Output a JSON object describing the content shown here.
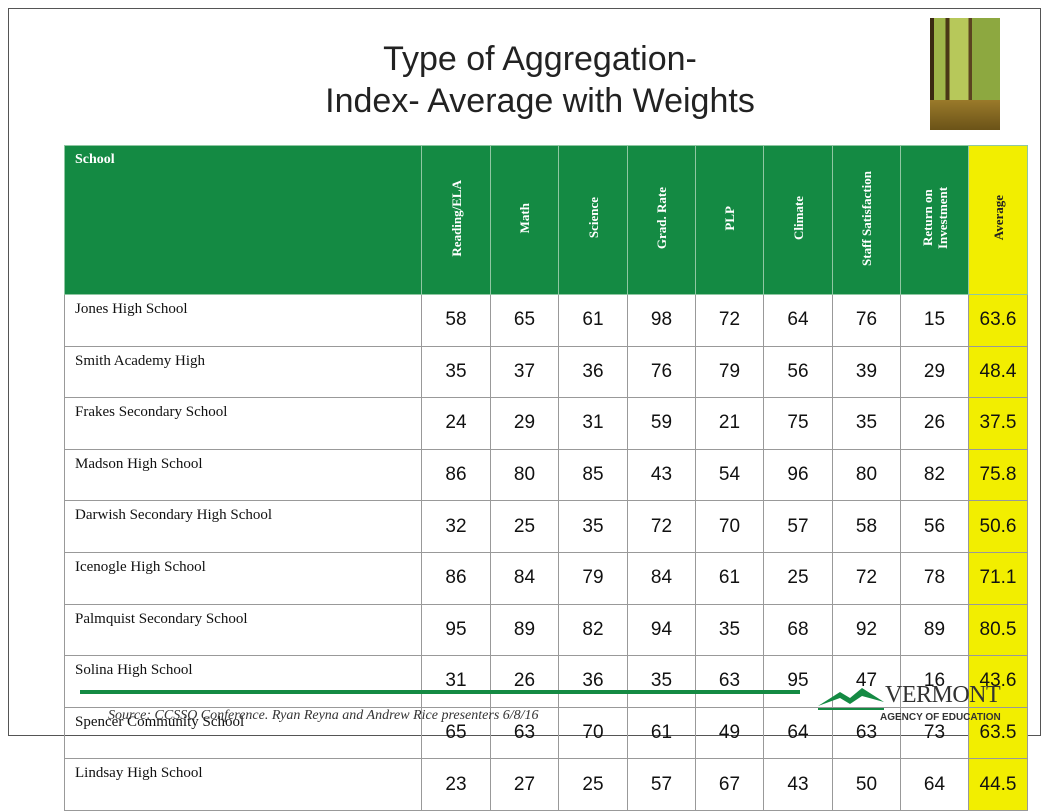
{
  "title": [
    "Type of Aggregation-",
    "Index- Average with Weights"
  ],
  "table": {
    "header": [
      "School",
      "Reading/ELA",
      "Math",
      "Science",
      "Grad. Rate",
      "PLP",
      "Climate",
      "Staff Satisfaction",
      "Return on Investment",
      "Average"
    ],
    "rows": [
      [
        "Jones High School",
        58,
        65,
        61,
        98,
        72,
        64,
        76,
        15,
        63.6
      ],
      [
        "Smith Academy High",
        35,
        37,
        36,
        76,
        79,
        56,
        39,
        29,
        48.4
      ],
      [
        "Frakes Secondary School",
        24,
        29,
        31,
        59,
        21,
        75,
        35,
        26,
        37.5
      ],
      [
        "Madson High School",
        86,
        80,
        85,
        43,
        54,
        96,
        80,
        82,
        75.8
      ],
      [
        "Darwish Secondary High School",
        32,
        25,
        35,
        72,
        70,
        57,
        58,
        56,
        50.6
      ],
      [
        "Icenogle High School",
        86,
        84,
        79,
        84,
        61,
        25,
        72,
        78,
        71.1
      ],
      [
        "Palmquist Secondary School",
        95,
        89,
        82,
        94,
        35,
        68,
        92,
        89,
        80.5
      ],
      [
        "Solina High School",
        31,
        26,
        36,
        35,
        63,
        95,
        47,
        16,
        43.6
      ],
      [
        "Spencer Community School",
        65,
        63,
        70,
        61,
        49,
        64,
        63,
        73,
        63.5
      ],
      [
        "Lindsay High School",
        23,
        27,
        25,
        57,
        67,
        43,
        50,
        64,
        44.5
      ]
    ]
  },
  "footer": {
    "source": "Source:  CCSSO Conference. Ryan Reyna and Andrew Rice presenters 6/8/16"
  },
  "logo": {
    "name": "VERMONT",
    "subtitle": "AGENCY OF EDUCATION"
  }
}
